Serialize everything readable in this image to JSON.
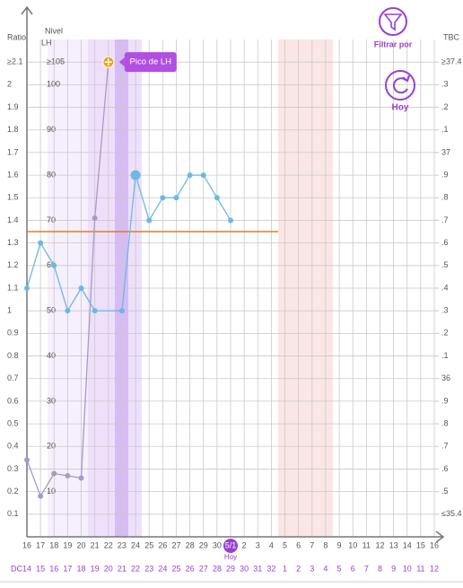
{
  "chart_data": {
    "type": "line",
    "y_label": "Ratio",
    "ylim": [
      0,
      2.2
    ],
    "yticks": [
      {
        "value": 2.1,
        "label": "≥2.1"
      },
      2,
      1.9,
      1.8,
      1.7,
      1.6,
      1.5,
      1.4,
      1.3,
      1.2,
      1.1,
      1,
      0.9,
      0.8,
      0.7,
      0.6,
      0.5,
      0.4,
      0.3,
      0.2,
      0.1
    ],
    "lh_label": [
      "Nivel",
      "LH"
    ],
    "lh_lim": [
      0,
      110
    ],
    "lh_ticks": [
      {
        "value": 105,
        "label": "≥105"
      },
      100,
      90,
      80,
      70,
      60,
      50,
      40,
      30,
      20,
      10
    ],
    "y2_label": "TBC",
    "y2lim": [
      35.3,
      37.5
    ],
    "y2ticks": [
      {
        "value": 37.4,
        "label": "≥37.4"
      },
      {
        "value": 37.3,
        "label": ".3"
      },
      {
        "value": 37.2,
        "label": ".2"
      },
      {
        "value": 37.1,
        "label": ".1"
      },
      37,
      {
        "value": 36.9,
        "label": ".9"
      },
      {
        "value": 36.8,
        "label": ".8"
      },
      {
        "value": 36.7,
        "label": ".7"
      },
      {
        "value": 36.6,
        "label": ".6"
      },
      {
        "value": 36.5,
        "label": ".5"
      },
      {
        "value": 36.4,
        "label": ".4"
      },
      {
        "value": 36.3,
        "label": ".3"
      },
      {
        "value": 36.2,
        "label": ".2"
      },
      {
        "value": 36.1,
        "label": ".1"
      },
      36,
      {
        "value": 35.9,
        "label": ".9"
      },
      {
        "value": 35.8,
        "label": ".8"
      },
      {
        "value": 35.7,
        "label": ".7"
      },
      {
        "value": 35.6,
        "label": ".6"
      },
      {
        "value": 35.5,
        "label": ".5"
      },
      {
        "value": 35.4,
        "label": "≤35.4"
      }
    ],
    "categories": [
      "16",
      "17",
      "18",
      "19",
      "20",
      "21",
      "22",
      "23",
      "24",
      "25",
      "26",
      "27",
      "28",
      "29",
      "30",
      "5/1",
      "2",
      "3",
      "4",
      "5",
      "6",
      "7",
      "8",
      "9",
      "10",
      "11",
      "12",
      "13",
      "14",
      "15",
      "16"
    ],
    "cycle_label": "DC",
    "cycle_days": [
      "14",
      "15",
      "16",
      "17",
      "18",
      "19",
      "20",
      "21",
      "22",
      "23",
      "24",
      "25",
      "26",
      "27",
      "28",
      "29",
      "30",
      "31",
      "32",
      "1",
      "2",
      "3",
      "4",
      "5",
      "6",
      "7",
      "8",
      "9",
      "10",
      "11",
      "12"
    ],
    "today_label": "Hoy",
    "series": [
      {
        "color": "#a79bc4",
        "axis": "y",
        "values": [
          0.34,
          0.18,
          0.28,
          0.27,
          0.26,
          1.41,
          2.1,
          null,
          null,
          null,
          null,
          null,
          null,
          null,
          null,
          null,
          null,
          null,
          null,
          null,
          null,
          null,
          null,
          null,
          null,
          null,
          null,
          null,
          null,
          null,
          null
        ]
      },
      {
        "color": "#6cb8e2",
        "axis": "y2",
        "values": [
          36.4,
          36.6,
          36.5,
          36.3,
          36.4,
          36.3,
          null,
          36.3,
          36.9,
          36.7,
          36.8,
          36.8,
          36.9,
          36.9,
          36.8,
          36.7,
          null,
          null,
          null,
          null,
          null,
          null,
          null,
          null,
          null,
          null,
          null,
          null,
          null,
          null,
          null
        ]
      }
    ],
    "coverline": {
      "value": 36.65,
      "axis": "y2",
      "color": "#e07b2a"
    },
    "annotation": "Pico de LH",
    "buttons": [
      "Filtrar por",
      "Hoy"
    ]
  }
}
